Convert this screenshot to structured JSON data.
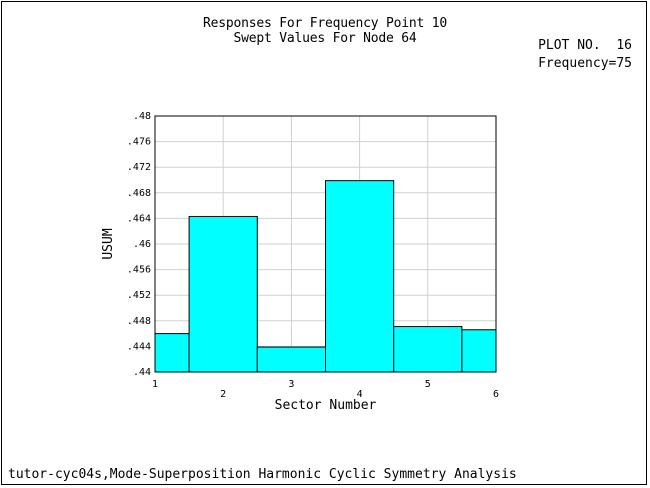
{
  "header": {
    "title_line1": "Responses For Frequency Point 10",
    "title_line2": "Swept Values For Node 64",
    "plot_no": "PLOT NO.  16",
    "frequency": "Frequency=75"
  },
  "footer": {
    "caption": "tutor-cyc04s,Mode-Superposition Harmonic Cyclic Symmetry Analysis"
  },
  "chart_data": {
    "type": "bar",
    "title": "Responses For Frequency Point 10",
    "subtitle": "Swept Values For Node 64",
    "xlabel": "Sector Number",
    "ylabel": "USUM",
    "xlim": [
      1,
      6
    ],
    "ylim": [
      0.44,
      0.48
    ],
    "x_ticks": [
      "1",
      "2",
      "3",
      "4",
      "5",
      "6"
    ],
    "y_ticks": [
      ".44",
      ".444",
      ".448",
      ".452",
      ".456",
      ".46",
      ".464",
      ".468",
      ".472",
      ".476",
      ".48"
    ],
    "categories": [
      "1",
      "2",
      "3",
      "4",
      "5",
      "6"
    ],
    "values": [
      0.446,
      0.4643,
      0.4439,
      0.4699,
      0.4471,
      0.4466
    ],
    "bar_color": "#00ffff",
    "grid": true
  }
}
